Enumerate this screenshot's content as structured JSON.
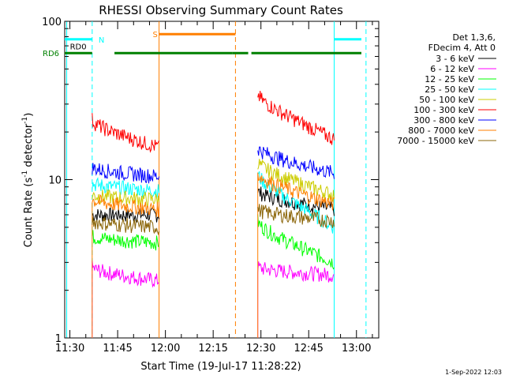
{
  "chart_data": {
    "type": "line",
    "title": "RHESSI Observing Summary Count Rates",
    "xlabel": "Start Time (19-Jul-17 11:28:22)",
    "ylabel": "Count Rate (s",
    "ylabel_sup": "-1",
    "ylabel_tail": " detector",
    "ylabel_tail_sup": "-1",
    "ylabel_close": ")",
    "yscale": "log",
    "ylim": [
      1,
      100
    ],
    "xlim_minutes": [
      11.5,
      13.1
    ],
    "y_ticks": [
      {
        "value": 1,
        "label": "1"
      },
      {
        "value": 10,
        "label": "10"
      },
      {
        "value": 100,
        "label": "100"
      }
    ],
    "x_ticks": [
      {
        "value": "11:30",
        "label": "11:30"
      },
      {
        "value": "11:45",
        "label": "11:45"
      },
      {
        "value": "12:00",
        "label": "12:00"
      },
      {
        "value": "12:15",
        "label": "12:15"
      },
      {
        "value": "12:30",
        "label": "12:30"
      },
      {
        "value": "12:45",
        "label": "12:45"
      },
      {
        "value": "13:00",
        "label": "13:00"
      }
    ],
    "legend_header": [
      "Det 1,3,6,",
      "FDecim 4, Att 0"
    ],
    "legend_position": "right",
    "segments": [
      {
        "start": "11:37",
        "end": "11:58"
      },
      {
        "start": "12:29",
        "end": "12:53"
      }
    ],
    "series": [
      {
        "name": "3 - 6 keV",
        "color": "#000000",
        "seg1": [
          6.0,
          6.0
        ],
        "seg2": [
          8.5,
          6.5
        ]
      },
      {
        "name": "6 - 12 keV",
        "color": "#ff00ff",
        "seg1": [
          2.8,
          2.3
        ],
        "seg2": [
          2.8,
          2.5
        ]
      },
      {
        "name": "12 - 25 keV",
        "color": "#00ff00",
        "seg1": [
          4.4,
          4.0
        ],
        "seg2": [
          5.5,
          3.0
        ]
      },
      {
        "name": "25 - 50 keV",
        "color": "#00ffff",
        "seg1": [
          9.5,
          8.5
        ],
        "seg2": [
          11.0,
          5.0
        ]
      },
      {
        "name": "50 - 100 keV",
        "color": "#cccc00",
        "seg1": [
          8.0,
          7.5
        ],
        "seg2": [
          13.0,
          8.0
        ]
      },
      {
        "name": "100 - 300 keV",
        "color": "#ff0000",
        "seg1": [
          24,
          16
        ],
        "seg2": [
          35,
          18
        ]
      },
      {
        "name": "300 - 800 keV",
        "color": "#0000ff",
        "seg1": [
          12,
          10.5
        ],
        "seg2": [
          16,
          11
        ]
      },
      {
        "name": "800 - 7000 keV",
        "color": "#ff7f00",
        "seg1": [
          7.5,
          6.5
        ],
        "seg2": [
          11,
          7
        ]
      },
      {
        "name": "7000 - 15000 keV",
        "color": "#8b6508",
        "seg1": [
          5.5,
          5.0
        ],
        "seg2": [
          6.5,
          5.5
        ]
      }
    ],
    "flags": [
      {
        "label": "N",
        "color": "#00ffff",
        "bars": [
          [
            "11:28",
            "11:37"
          ],
          [
            "12:53",
            "13:03"
          ]
        ],
        "level": 77
      },
      {
        "label": "S",
        "color": "#ff7f00",
        "bars": [
          [
            "11:58",
            "12:22"
          ]
        ],
        "level": 83
      },
      {
        "label": "RD0",
        "color": "#000000",
        "bars": [],
        "level": 69
      },
      {
        "label": "RD6",
        "color": "#008000",
        "bars": [
          [
            "11:28",
            "11:37"
          ],
          [
            "11:44",
            "12:21"
          ],
          [
            "12:21",
            "12:26"
          ],
          [
            "12:27",
            "13:03"
          ]
        ],
        "level": 63
      }
    ],
    "vlines": [
      {
        "time": "11:29",
        "color": "#00ffff",
        "style": "solid"
      },
      {
        "time": "11:37",
        "color": "#00ffff",
        "style": "dashed"
      },
      {
        "time": "12:53",
        "color": "#00ffff",
        "style": "solid"
      },
      {
        "time": "13:03",
        "color": "#00ffff",
        "style": "dashed"
      },
      {
        "time": "11:58",
        "color": "#ff7f00",
        "style": "solid"
      },
      {
        "time": "12:22",
        "color": "#ff7f00",
        "style": "dashed"
      }
    ],
    "grid": false
  },
  "footer": {
    "timestamp": "1-Sep-2022 12:03"
  }
}
